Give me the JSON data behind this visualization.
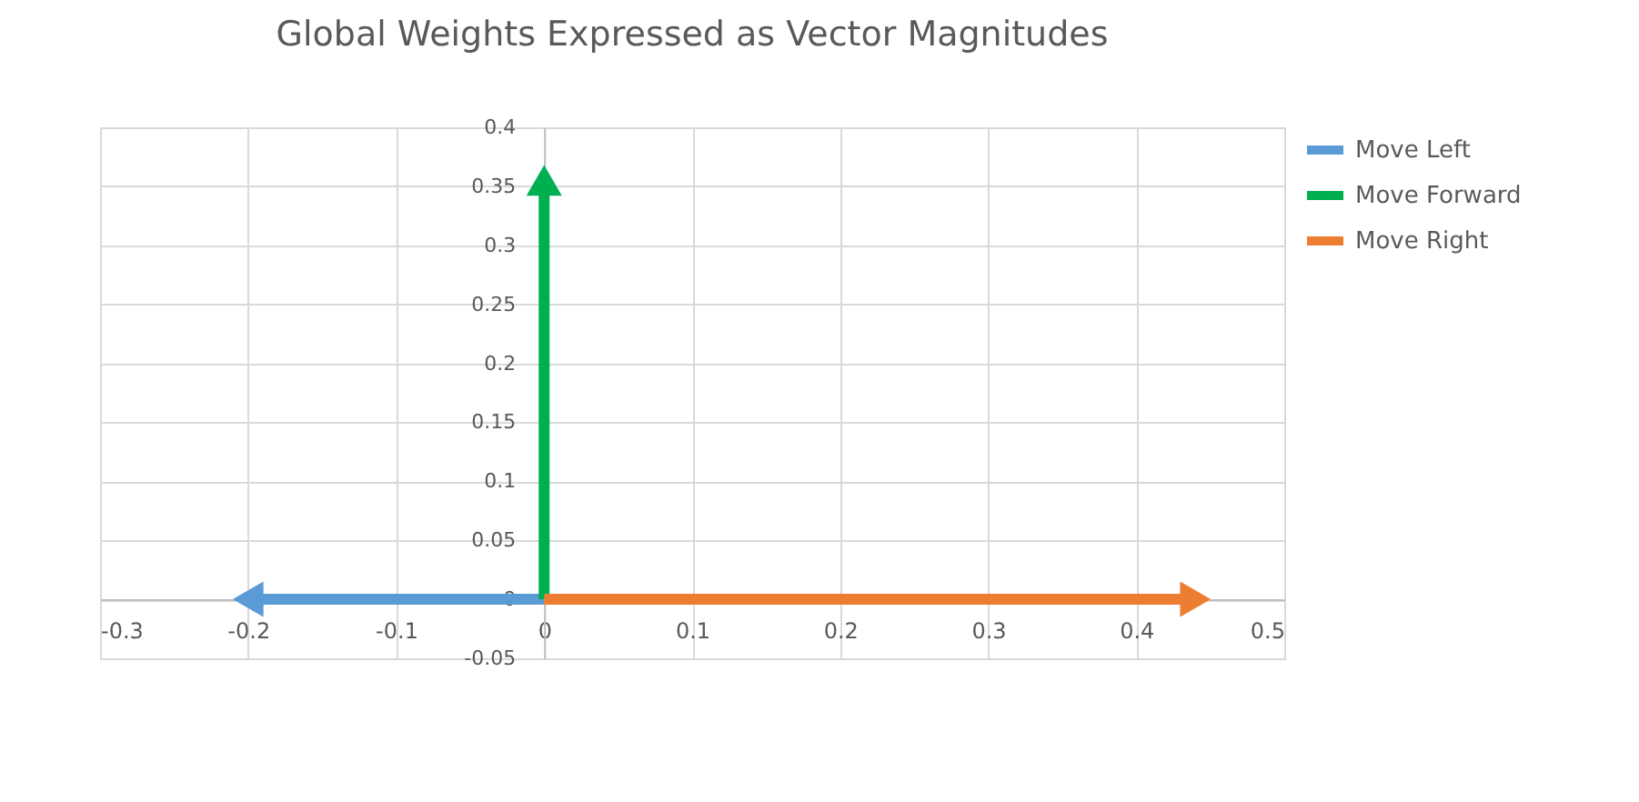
{
  "chart_data": {
    "type": "line",
    "title": "Global Weights Expressed as Vector Magnitudes",
    "series": [
      {
        "name": "Move Left",
        "color": "#5b9bd5",
        "x": [
          0,
          -0.2
        ],
        "values": [
          0,
          0
        ]
      },
      {
        "name": "Move Forward",
        "color": "#00b050",
        "x": [
          0,
          0
        ],
        "values": [
          0,
          0.355
        ]
      },
      {
        "name": "Move Right",
        "color": "#ed7d31",
        "x": [
          0,
          0.44
        ],
        "values": [
          0,
          0
        ]
      }
    ],
    "xlim": [
      -0.3,
      0.5
    ],
    "xticks": [
      -0.3,
      -0.2,
      -0.1,
      0,
      0.1,
      0.2,
      0.3,
      0.4,
      0.5
    ],
    "ylim": [
      -0.05,
      0.4
    ],
    "yticks": [
      -0.05,
      0,
      0.05,
      0.1,
      0.15,
      0.2,
      0.25,
      0.3,
      0.35,
      0.4
    ],
    "grid": true,
    "legend": "right"
  }
}
